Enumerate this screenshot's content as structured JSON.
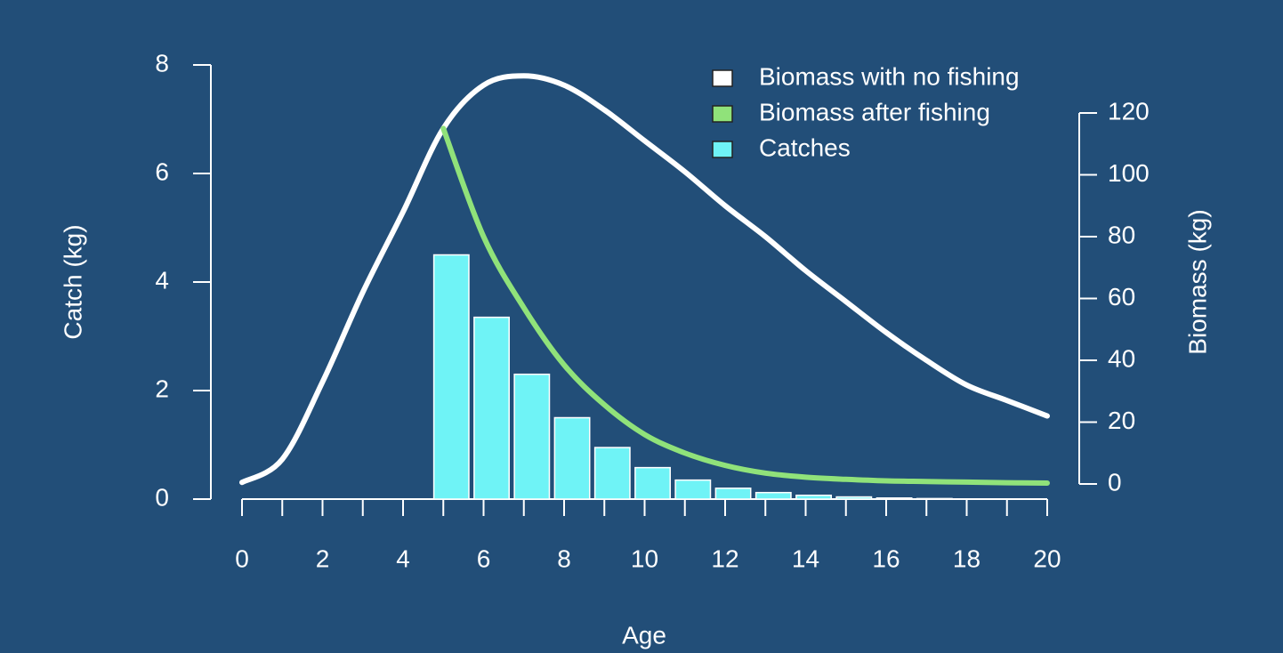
{
  "chart_data": {
    "type": "bar-line",
    "x_label": "Age",
    "y_label": "Catch (kg)",
    "y2_label": "Biomass (kg)",
    "xlim": [
      0,
      20
    ],
    "xticks": [
      0,
      2,
      4,
      6,
      8,
      10,
      12,
      14,
      16,
      18,
      20
    ],
    "xminorticks": [
      1,
      3,
      5,
      7,
      9,
      11,
      13,
      15,
      17,
      19
    ],
    "ylim": [
      0,
      8
    ],
    "yticks": [
      0,
      2,
      4,
      6,
      8
    ],
    "y2lim": [
      0,
      120
    ],
    "y2ticks": [
      0,
      20,
      40,
      60,
      80,
      100,
      120
    ],
    "x": [
      0,
      1,
      2,
      3,
      4,
      5,
      6,
      7,
      8,
      9,
      10,
      11,
      12,
      13,
      14,
      15,
      16,
      17,
      18,
      19,
      20
    ],
    "series": [
      {
        "name": "Biomass with no fishing",
        "color": "#ffffff",
        "type": "line",
        "axis": "y2",
        "values": [
          0.5,
          8,
          33,
          62,
          88,
          115,
          129,
          132,
          129,
          121,
          111,
          101,
          90,
          80,
          69,
          59,
          49,
          40,
          32,
          27,
          22
        ]
      },
      {
        "name": "Biomass after fishing",
        "color": "#90e27a",
        "type": "line",
        "axis": "y2",
        "values": [
          null,
          null,
          null,
          null,
          null,
          115,
          80,
          57,
          38.5,
          25.6,
          16,
          10,
          6,
          3.5,
          2.2,
          1.5,
          1,
          0.8,
          0.6,
          0.4,
          0.3
        ]
      },
      {
        "name": "Catches",
        "color": "#6ff3f6",
        "type": "bar",
        "axis": "y",
        "values": [
          null,
          null,
          null,
          null,
          null,
          4.5,
          3.35,
          2.3,
          1.5,
          0.95,
          0.58,
          0.35,
          0.2,
          0.12,
          0.07,
          0.04,
          0.02,
          0.01,
          null,
          null,
          null
        ]
      }
    ]
  }
}
